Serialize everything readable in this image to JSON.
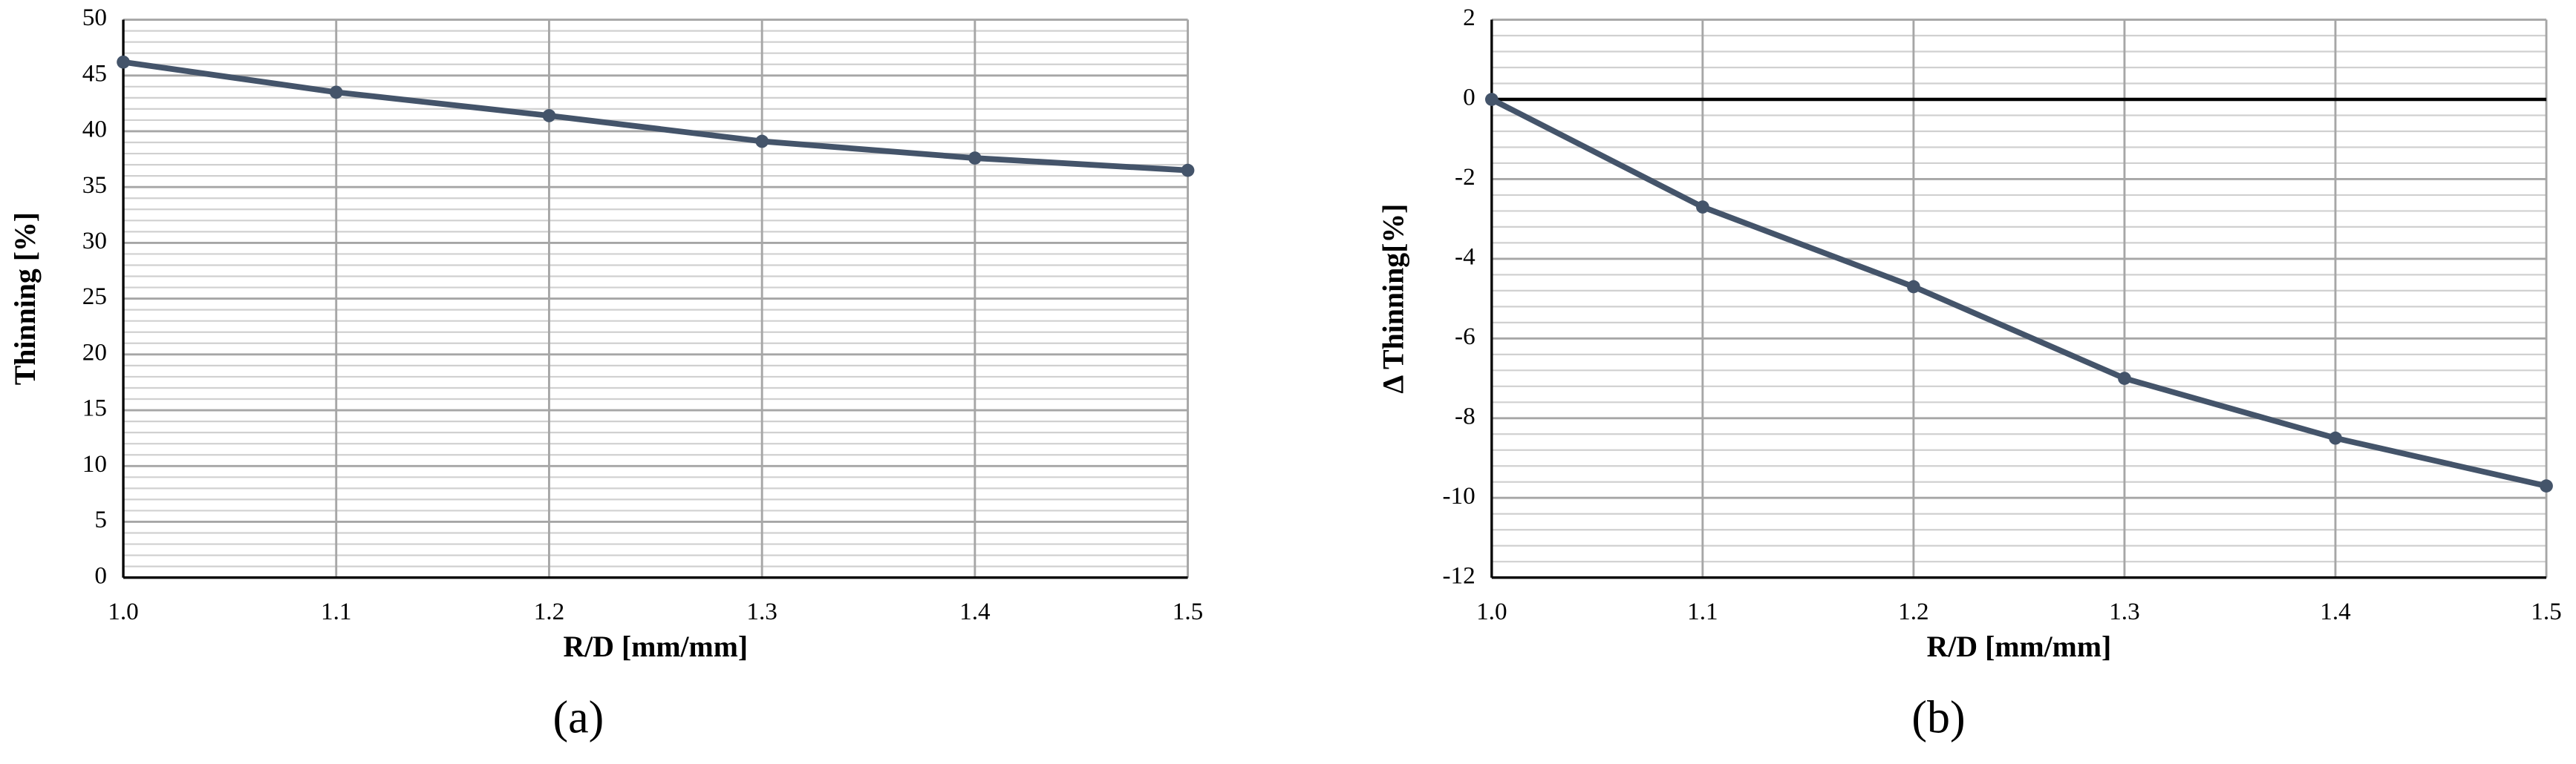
{
  "chart_data": [
    {
      "type": "line",
      "x_label": "R/D [mm/mm]",
      "y_label": "Thinning [%]",
      "caption": "(a)",
      "x": [
        1.0,
        1.1,
        1.2,
        1.3,
        1.4,
        1.5
      ],
      "series": [
        {
          "color": "#44546a",
          "values": [
            46.2,
            43.5,
            41.4,
            39.1,
            37.6,
            36.5
          ]
        }
      ],
      "xlim": [
        1.0,
        1.5
      ],
      "xticks": [
        {
          "value": 1.0,
          "label": "1.0"
        },
        1.1,
        1.2,
        1.3,
        1.4,
        1.5
      ],
      "ylim": [
        0,
        50
      ],
      "yticks": [
        0,
        5,
        10,
        15,
        20,
        25,
        30,
        35,
        40,
        45,
        50
      ],
      "grid": true,
      "minor_grid_step": 1
    },
    {
      "type": "line",
      "x_label": "R/D [mm/mm]",
      "y_label": "Δ Thinning[%]",
      "caption": "(b)",
      "x": [
        1.0,
        1.1,
        1.2,
        1.3,
        1.4,
        1.5
      ],
      "series": [
        {
          "color": "#44546a",
          "values": [
            0,
            -2.7,
            -4.7,
            -7.0,
            -8.5,
            -9.7
          ]
        }
      ],
      "xlim": [
        1.0,
        1.5
      ],
      "xticks": [
        {
          "value": 1.0,
          "label": "1.0"
        },
        1.1,
        1.2,
        1.3,
        1.4,
        1.5
      ],
      "ylim": [
        -12,
        2
      ],
      "yticks": [
        -12,
        -10,
        -8,
        -6,
        -4,
        -2,
        0,
        2
      ],
      "grid": true,
      "minor_grid_step": 0.4,
      "zero_line": true
    }
  ]
}
